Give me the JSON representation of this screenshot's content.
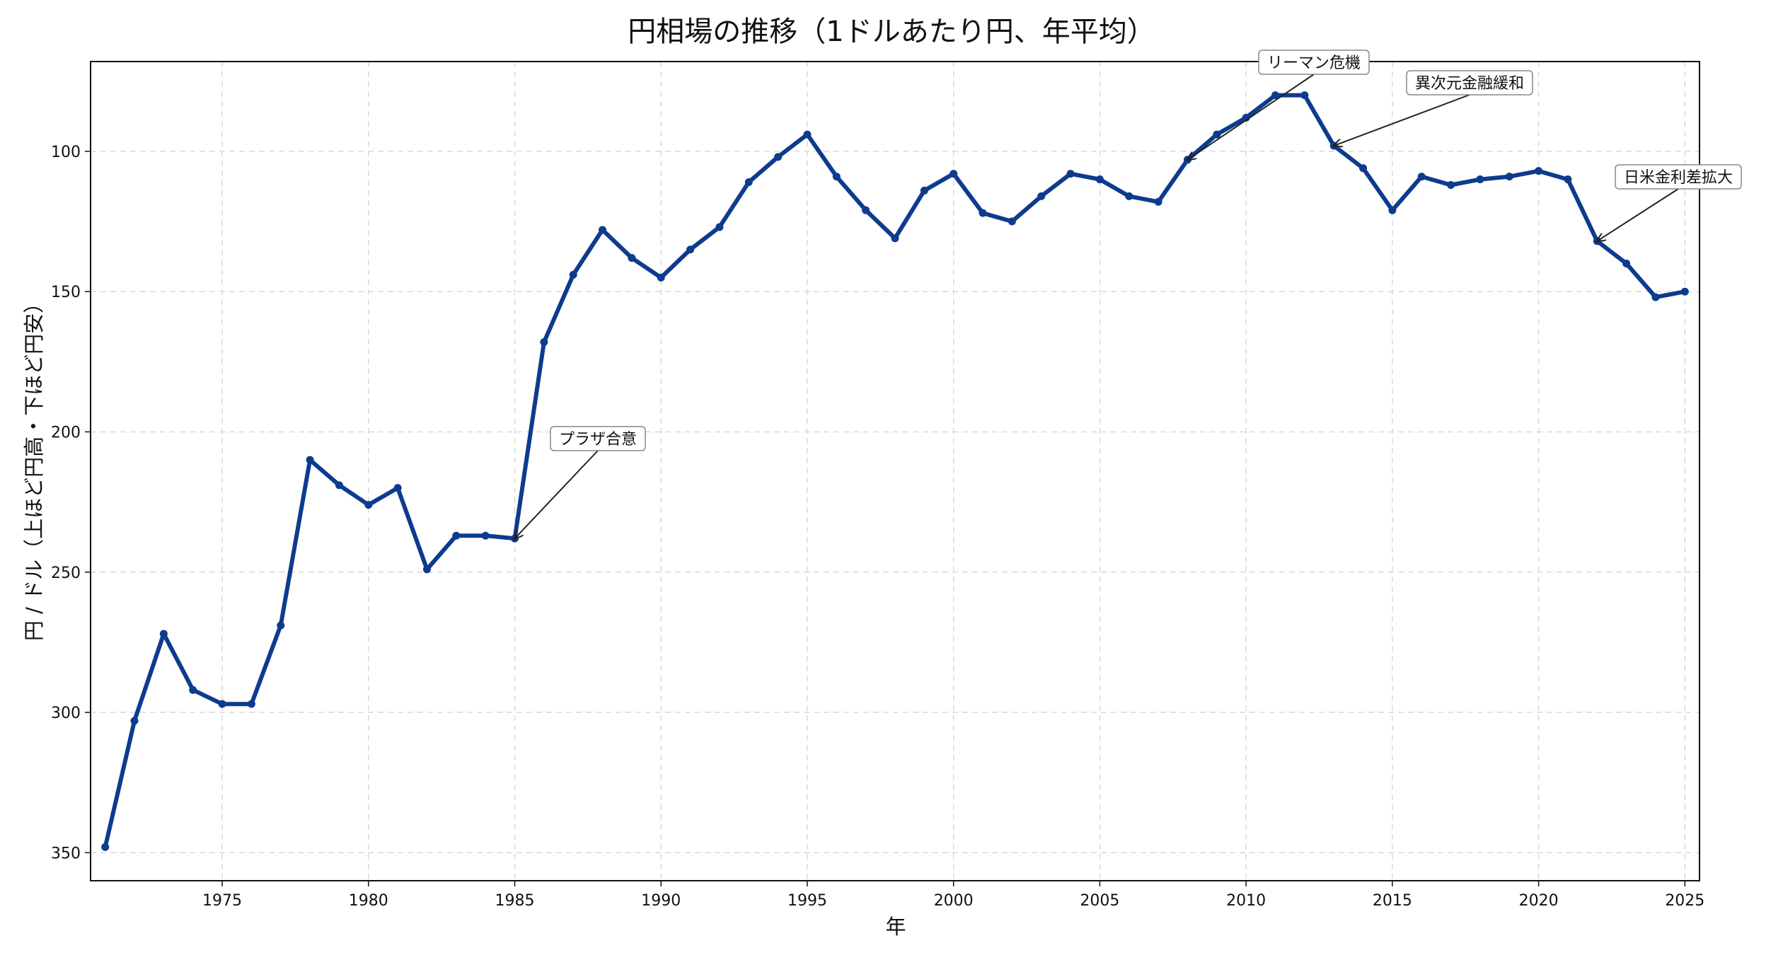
{
  "chart_data": {
    "type": "line",
    "title": "円相場の推移（1ドルあたり円、年平均）",
    "xlabel": "年",
    "ylabel": "円 / ドル（上ほど円高・下ほど円安）",
    "xlim": [
      1970.5,
      2025.5
    ],
    "ylim": [
      360,
      68
    ],
    "y_inverted": true,
    "grid": true,
    "line_color": "#0d3b8e",
    "x_ticks": [
      1975,
      1980,
      1985,
      1990,
      1995,
      2000,
      2005,
      2010,
      2015,
      2020,
      2025
    ],
    "y_ticks": [
      100,
      150,
      200,
      250,
      300,
      350
    ],
    "series": [
      {
        "x": [
          1971,
          1972,
          1973,
          1974,
          1975,
          1976,
          1977,
          1978,
          1979,
          1980,
          1981,
          1982,
          1983,
          1984,
          1985,
          1986,
          1987,
          1988,
          1989,
          1990,
          1991,
          1992,
          1993,
          1994,
          1995,
          1996,
          1997,
          1998,
          1999,
          2000,
          2001,
          2002,
          2003,
          2004,
          2005,
          2006,
          2007,
          2008,
          2009,
          2010,
          2011,
          2012,
          2013,
          2014,
          2015,
          2016,
          2017,
          2018,
          2019,
          2020,
          2021,
          2022,
          2023,
          2024,
          2025
        ],
        "values": [
          348,
          303,
          272,
          292,
          297,
          297,
          269,
          210,
          219,
          226,
          220,
          249,
          237,
          237,
          238,
          168,
          144,
          128,
          138,
          145,
          135,
          127,
          111,
          102,
          94,
          109,
          121,
          131,
          114,
          108,
          122,
          125,
          116,
          108,
          110,
          116,
          118,
          103,
          94,
          88,
          80,
          80,
          98,
          106,
          121,
          109,
          112,
          110,
          109,
          107,
          110,
          132,
          140,
          152,
          150
        ]
      }
    ],
    "annotations": [
      {
        "text": "プラザ合意",
        "x": 1985,
        "y": 238
      },
      {
        "text": "リーマン危機",
        "x": 2008,
        "y": 103
      },
      {
        "text": "異次元金融緩和",
        "x": 2013,
        "y": 98
      },
      {
        "text": "日米金利差拡大",
        "x": 2022,
        "y": 132
      }
    ]
  }
}
